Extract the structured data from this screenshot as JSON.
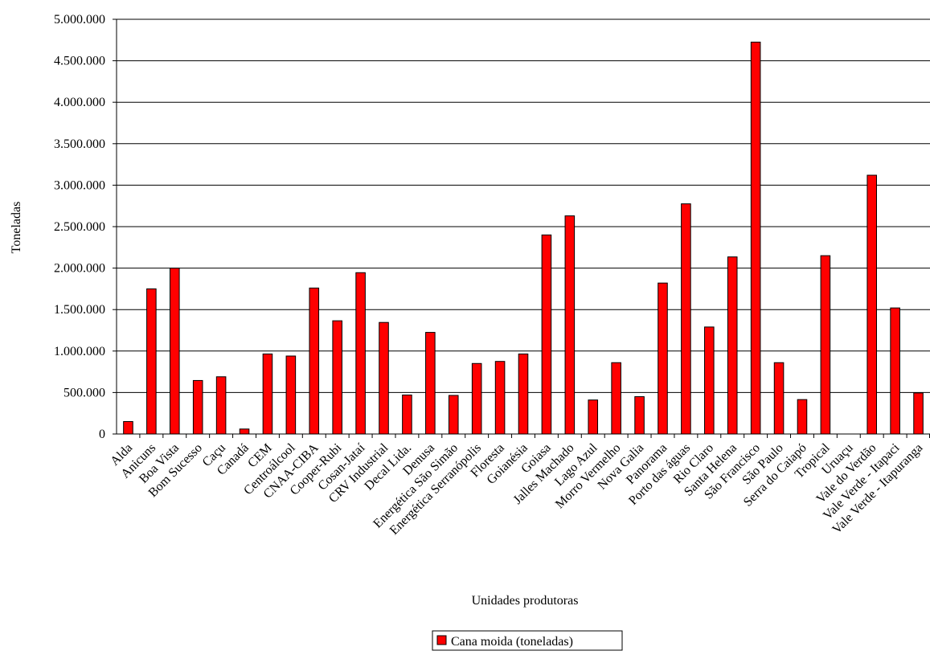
{
  "chart_data": {
    "type": "bar",
    "title": "",
    "xlabel": "Unidades produtoras",
    "ylabel": "Toneladas",
    "ylim": [
      0,
      5000000
    ],
    "ytick_step": 500000,
    "grid": true,
    "legend_position": "bottom-center",
    "bar_color": "#FF0000",
    "bar_edge_color": "#000000",
    "categories": [
      "Alda",
      "Anicuns",
      "Boa Vista",
      "Bom Sucesso",
      "Caçu",
      "Canadá",
      "CEM",
      "Centroálcool",
      "CNAA-CIBA",
      "Cooper-Rubi",
      "Cosan-Jataí",
      "CRV Industrial",
      "Decal Lida.",
      "Denusa",
      "Energética São Simão",
      "Energética Serranópolis",
      "Floresta",
      "Goianésia",
      "Goiasa",
      "Jalles Machado",
      "Lago Azul",
      "Morro Vermelho",
      "Nova Galia",
      "Panorama",
      "Porto das águas",
      "Rio Claro",
      "Santa Helena",
      "São Francisco",
      "São Paulo",
      "Serra do Caiapó",
      "Tropical",
      "Uruaçu",
      "Vale do Verdão",
      "Vale Verde - Itapaci",
      "Vale Verde - Itapuranga"
    ],
    "series": [
      {
        "name": "Cana moida (toneladas)",
        "values": [
          150000,
          1750000,
          2000000,
          645000,
          690000,
          60000,
          965000,
          940000,
          1760000,
          1365000,
          1945000,
          1345000,
          470000,
          1225000,
          465000,
          850000,
          875000,
          965000,
          2400000,
          2630000,
          410000,
          860000,
          450000,
          1820000,
          2775000,
          1290000,
          2135000,
          4725000,
          860000,
          415000,
          2150000,
          0,
          3120000,
          1520000,
          495000
        ]
      }
    ]
  }
}
